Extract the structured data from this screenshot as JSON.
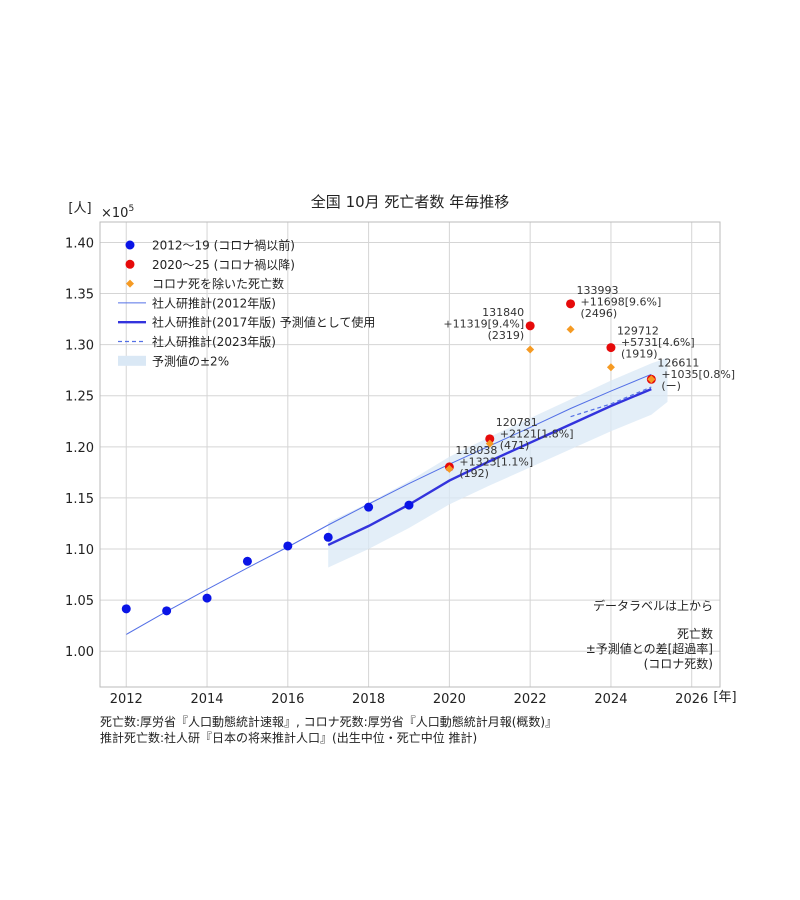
{
  "chart_data": {
    "type": "scatter",
    "title": "全国 10月 死亡者数 年毎推移",
    "ylabel": "[人]",
    "xlabel": "[年]",
    "y_multiplier": "×10",
    "y_multiplier_exp": "5",
    "xlim": [
      2011.35,
      2026.7
    ],
    "ylim": [
      0.965,
      1.42
    ],
    "x_ticks": [
      2012,
      2014,
      2016,
      2018,
      2020,
      2022,
      2024,
      2026
    ],
    "x_tick_labels": [
      "2012",
      "2014",
      "2016",
      "2018",
      "2020",
      "2022",
      "2024",
      "2026"
    ],
    "y_ticks": [
      1.0,
      1.05,
      1.1,
      1.15,
      1.2,
      1.25,
      1.3,
      1.35,
      1.4
    ],
    "y_tick_labels": [
      "1.00",
      "1.05",
      "1.10",
      "1.15",
      "1.20",
      "1.25",
      "1.30",
      "1.35",
      "1.40"
    ],
    "grid": true,
    "legend_position": "top-left",
    "legend": [
      {
        "label": "2012〜19 (コロナ禍以前)",
        "kind": "dot",
        "color": "#0a14e6"
      },
      {
        "label": "2020〜25 (コロナ禍以降)",
        "kind": "dot",
        "color": "#e60a0a"
      },
      {
        "label": "コロナ死を除いた死亡数",
        "kind": "diamond",
        "color": "#f59a23"
      },
      {
        "label": "社人研推計(2012年版)",
        "kind": "thinline",
        "color": "#5470e6"
      },
      {
        "label": "社人研推計(2017年版) 予測値として使用",
        "kind": "boldline",
        "color": "#3333dd"
      },
      {
        "label": "社人研推計(2023年版)",
        "kind": "dashline",
        "color": "#5470e6"
      },
      {
        "label": "予測値の±2%",
        "kind": "band",
        "color": "#dae8f5"
      }
    ],
    "series": [
      {
        "name": "2012〜19 (コロナ禍以前)",
        "color": "#0a14e6",
        "x": [
          2012,
          2013,
          2014,
          2015,
          2016,
          2017,
          2018,
          2019
        ],
        "y": [
          1.0415,
          1.0395,
          1.052,
          1.088,
          1.103,
          1.1115,
          1.141,
          1.143
        ]
      },
      {
        "name": "2020〜25 (コロナ禍以降)",
        "color": "#e60a0a",
        "x": [
          2020,
          2021,
          2022,
          2023,
          2024,
          2025
        ],
        "y": [
          1.18038,
          1.20781,
          1.3184,
          1.33993,
          1.29712,
          1.26611
        ]
      },
      {
        "name": "コロナ死を除いた死亡数",
        "color": "#f59a23",
        "x": [
          2020,
          2021,
          2022,
          2023,
          2024,
          2025
        ],
        "y": [
          1.17846,
          1.2031,
          1.29521,
          1.31497,
          1.27793,
          1.26611
        ]
      },
      {
        "name": "社人研推計(2012年版)",
        "color": "#5470e6",
        "x": [
          2012,
          2013,
          2014,
          2015,
          2016,
          2017,
          2018,
          2019,
          2020,
          2021,
          2022,
          2023,
          2024,
          2025
        ],
        "y": [
          1.0165,
          1.039,
          1.0605,
          1.0815,
          1.102,
          1.1235,
          1.144,
          1.164,
          1.183,
          1.201,
          1.219,
          1.2375,
          1.2545,
          1.271
        ]
      },
      {
        "name": "社人研推計(2017年版) 予測値として使用",
        "color": "#3333dd",
        "x": [
          2017,
          2018,
          2019,
          2020,
          2021,
          2022,
          2023,
          2024,
          2025
        ],
        "y": [
          1.104,
          1.1225,
          1.1435,
          1.167,
          1.186,
          1.204,
          1.222,
          1.24,
          1.2565
        ]
      },
      {
        "name": "社人研推計(2023年版)",
        "color": "#5470e6",
        "x": [
          2023,
          2024,
          2025
        ],
        "y": [
          1.2295,
          1.242,
          1.2585
        ]
      }
    ],
    "band": {
      "x": [
        2017,
        2018,
        2019,
        2020,
        2021,
        2022,
        2023,
        2024,
        2025,
        2025.4
      ],
      "lower": [
        1.0819,
        1.1,
        1.1206,
        1.1437,
        1.1623,
        1.1799,
        1.1976,
        1.2152,
        1.2314,
        1.244
      ],
      "upper": [
        1.1261,
        1.145,
        1.1664,
        1.1903,
        1.2097,
        1.2281,
        1.2464,
        1.2648,
        1.2816,
        1.287
      ]
    },
    "data_labels": [
      {
        "x": 2020,
        "lines": [
          "118038",
          "+1323[1.1%]",
          "(192)"
        ]
      },
      {
        "x": 2021,
        "lines": [
          "120781",
          "+2121[1.8%]",
          "(471)"
        ]
      },
      {
        "x": 2022,
        "lines": [
          "131840",
          "+11319[9.4%]",
          "(2319)"
        ]
      },
      {
        "x": 2023,
        "lines": [
          "133993",
          "+11698[9.6%]",
          "(2496)"
        ]
      },
      {
        "x": 2024,
        "lines": [
          "129712",
          "+5731[4.6%]",
          "(1919)"
        ]
      },
      {
        "x": 2025,
        "lines": [
          "126611",
          "+1035[0.8%]",
          "(ー)"
        ]
      }
    ],
    "annotation_title": "データラベルは上から",
    "annotation_lines": [
      "死亡数",
      "±予測値との差[超過率]",
      "(コロナ死数)"
    ]
  },
  "footer": {
    "source_line1": "死亡数:厚労省『人口動態統計速報』, コロナ死数:厚労省『人口動態統計月報(概数)』",
    "source_line2": "推計死亡数:社人研『日本の将来推計人口』(出生中位・死亡中位 推計)"
  }
}
